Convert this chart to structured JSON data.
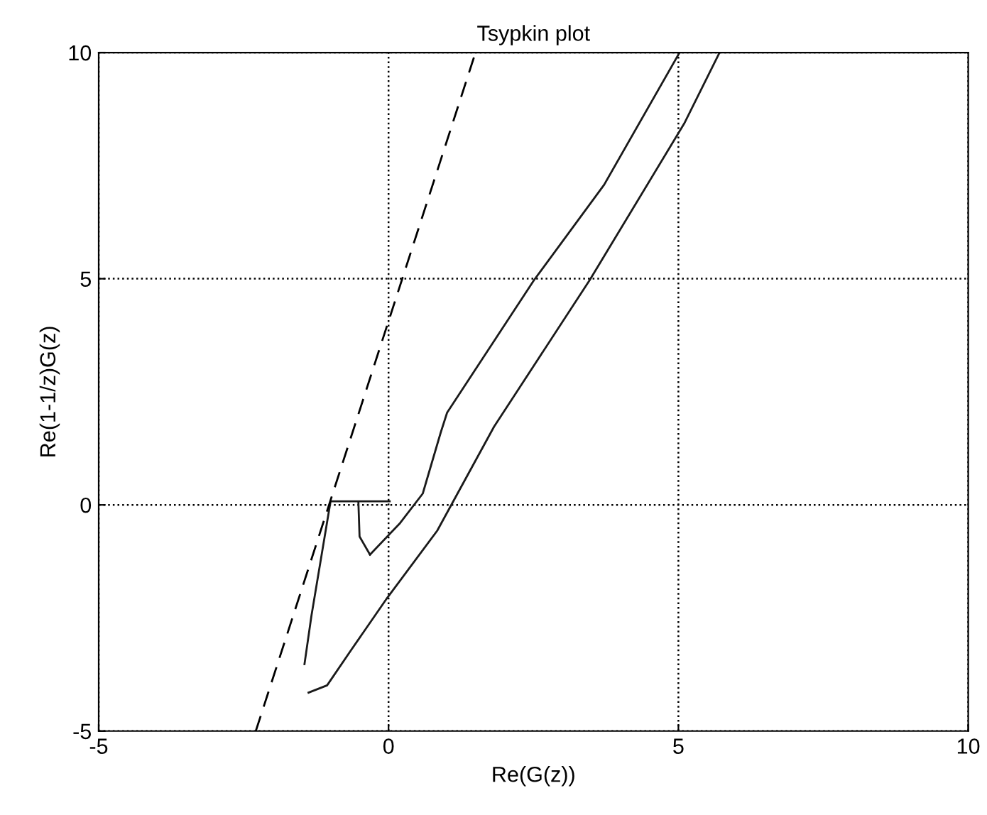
{
  "chart_data": {
    "type": "line",
    "title": "Tsypkin plot",
    "xlabel": "Re(G(z))",
    "ylabel": "Re(1-1/z)G(z)",
    "series": [
      {
        "color": "#1a1a1a",
        "line_style": "solid",
        "x": [
          -1.38,
          -1.06,
          -0.64,
          -0.02,
          0.84,
          1.82,
          3.47,
          5.1,
          5.71
        ],
        "values": [
          -4.15,
          -3.99,
          -3.2,
          -2.05,
          -0.57,
          1.73,
          4.97,
          8.43,
          10
        ]
      },
      {
        "color": "#1a1a1a",
        "line_style": "solid",
        "x": [
          -0.32,
          0.2,
          0.59,
          0.9,
          1.01,
          2.51,
          3.72,
          5.02
        ],
        "values": [
          -1.1,
          -0.4,
          0.25,
          1.6,
          2.04,
          4.97,
          7.08,
          10
        ]
      },
      {
        "color": "#1a1a1a",
        "line_style": "solid",
        "x": [
          -1.45,
          -1.33,
          -1.0,
          0.02
        ],
        "values": [
          -3.52,
          -2.45,
          0.08,
          0.08
        ]
      },
      {
        "color": "#1a1a1a",
        "line_style": "solid",
        "x": [
          -0.52,
          -0.5,
          -0.32
        ],
        "values": [
          0.05,
          -0.7,
          -1.1
        ]
      },
      {
        "color": "#000000",
        "line_style": "dashed",
        "x": [
          -2.29,
          1.5
        ],
        "values": [
          -5,
          10
        ]
      }
    ],
    "xlim": [
      -5,
      10
    ],
    "ylim": [
      -5,
      10
    ],
    "xticks": [
      -5,
      0,
      5,
      10
    ],
    "yticks": [
      -5,
      0,
      5,
      10
    ],
    "grid": true,
    "marker": "none"
  }
}
